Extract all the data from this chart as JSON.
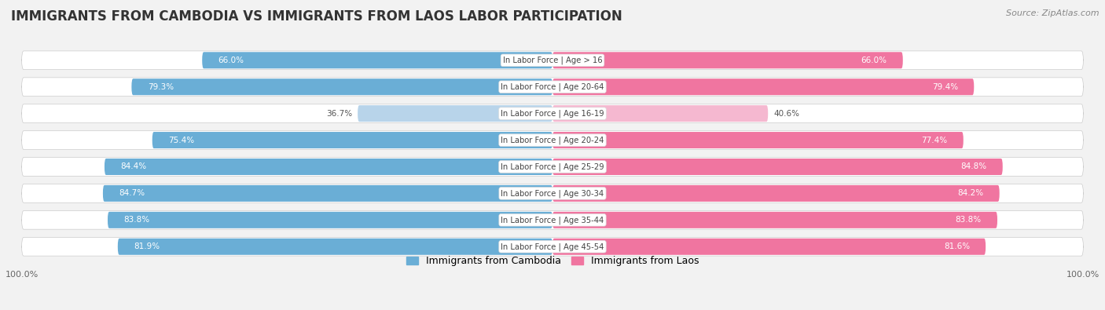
{
  "title": "IMMIGRANTS FROM CAMBODIA VS IMMIGRANTS FROM LAOS LABOR PARTICIPATION",
  "source": "Source: ZipAtlas.com",
  "categories": [
    "In Labor Force | Age > 16",
    "In Labor Force | Age 20-64",
    "In Labor Force | Age 16-19",
    "In Labor Force | Age 20-24",
    "In Labor Force | Age 25-29",
    "In Labor Force | Age 30-34",
    "In Labor Force | Age 35-44",
    "In Labor Force | Age 45-54"
  ],
  "cambodia_values": [
    66.0,
    79.3,
    36.7,
    75.4,
    84.4,
    84.7,
    83.8,
    81.9
  ],
  "laos_values": [
    66.0,
    79.4,
    40.6,
    77.4,
    84.8,
    84.2,
    83.8,
    81.6
  ],
  "cambodia_color": "#6aaed6",
  "cambodia_color_light": "#b8d4ea",
  "laos_color": "#f075a0",
  "laos_color_light": "#f5b8d0",
  "bg_color": "#f2f2f2",
  "row_bg": "#e8e8ec",
  "title_fontsize": 12,
  "source_fontsize": 8,
  "bar_height": 0.62,
  "max_val": 100.0
}
